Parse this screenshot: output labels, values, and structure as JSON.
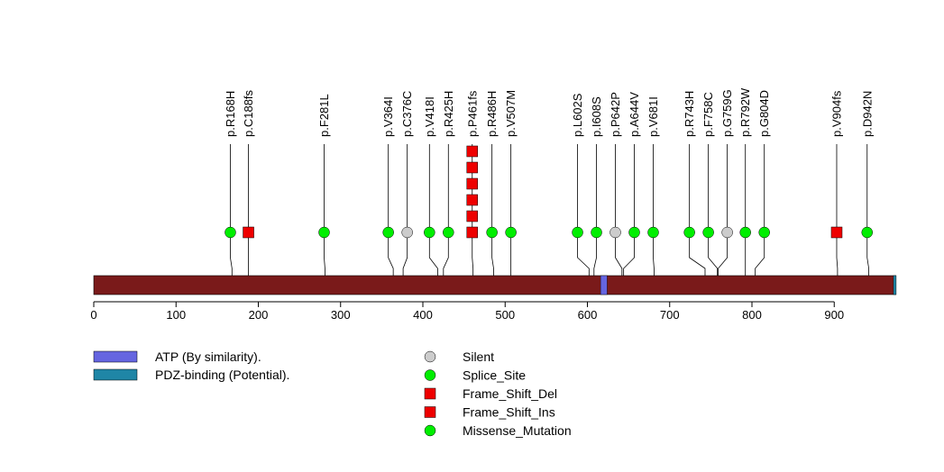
{
  "chart_data": {
    "type": "lollipop",
    "protein_length": 975,
    "xlim": [
      0,
      975
    ],
    "x_ticks": [
      0,
      100,
      200,
      300,
      400,
      500,
      600,
      700,
      800,
      900
    ],
    "domains": [
      {
        "name": "ATP (By similarity).",
        "start": 616,
        "end": 624,
        "color": "#6565e0"
      },
      {
        "name": "PDZ-binding (Potential).",
        "start": 972,
        "end": 975,
        "color": "#1f86a6"
      }
    ],
    "backbone_color": "#7a1a1a",
    "mutations": [
      {
        "label": "p.R168H",
        "position": 168,
        "type": "Missense_Mutation",
        "count": 1,
        "display_position": 166
      },
      {
        "label": "p.C188fs",
        "position": 188,
        "type": "Frame_Shift_Del",
        "count": 1,
        "display_position": 188
      },
      {
        "label": "p.F281L",
        "position": 281,
        "type": "Missense_Mutation",
        "count": 1,
        "display_position": 280
      },
      {
        "label": "p.V364I",
        "position": 364,
        "type": "Missense_Mutation",
        "count": 1,
        "display_position": 358
      },
      {
        "label": "p.C376C",
        "position": 376,
        "type": "Silent",
        "count": 1,
        "display_position": 381
      },
      {
        "label": "p.V418I",
        "position": 418,
        "type": "Missense_Mutation",
        "count": 1,
        "display_position": 408
      },
      {
        "label": "p.R425H",
        "position": 425,
        "type": "Missense_Mutation",
        "count": 1,
        "display_position": 431
      },
      {
        "label": "p.P461fs",
        "position": 461,
        "type": "Frame_Shift_Del",
        "count": 6,
        "display_position": 460
      },
      {
        "label": "p.R486H",
        "position": 486,
        "type": "Missense_Mutation",
        "count": 1,
        "display_position": 484
      },
      {
        "label": "p.V507M",
        "position": 507,
        "type": "Missense_Mutation",
        "count": 1,
        "display_position": 507
      },
      {
        "label": "p.L602S",
        "position": 602,
        "type": "Missense_Mutation",
        "count": 1,
        "display_position": 588
      },
      {
        "label": "p.I608S",
        "position": 608,
        "type": "Missense_Mutation",
        "count": 1,
        "display_position": 611
      },
      {
        "label": "p.P642P",
        "position": 642,
        "type": "Silent",
        "count": 1,
        "display_position": 634
      },
      {
        "label": "p.A644V",
        "position": 644,
        "type": "Missense_Mutation",
        "count": 1,
        "display_position": 657
      },
      {
        "label": "p.V681I",
        "position": 681,
        "type": "Missense_Mutation",
        "count": 1,
        "display_position": 680
      },
      {
        "label": "p.R743H",
        "position": 743,
        "type": "Missense_Mutation",
        "count": 1,
        "display_position": 724
      },
      {
        "label": "p.F758C",
        "position": 758,
        "type": "Missense_Mutation",
        "count": 1,
        "display_position": 747
      },
      {
        "label": "p.G759G",
        "position": 759,
        "type": "Silent",
        "count": 1,
        "display_position": 770
      },
      {
        "label": "p.R792W",
        "position": 792,
        "type": "Missense_Mutation",
        "count": 1,
        "display_position": 792
      },
      {
        "label": "p.G804D",
        "position": 804,
        "type": "Missense_Mutation",
        "count": 1,
        "display_position": 815
      },
      {
        "label": "p.V904fs",
        "position": 904,
        "type": "Frame_Shift_Del",
        "count": 1,
        "display_position": 903
      },
      {
        "label": "p.D942N",
        "position": 942,
        "type": "Missense_Mutation",
        "count": 1,
        "display_position": 940
      }
    ],
    "mutation_legend": [
      {
        "name": "Silent",
        "shape": "circle",
        "color": "#cccccc"
      },
      {
        "name": "Splice_Site",
        "shape": "circle",
        "color": "#00ee00"
      },
      {
        "name": "Frame_Shift_Del",
        "shape": "square",
        "color": "#ee0000"
      },
      {
        "name": "Frame_Shift_Ins",
        "shape": "square",
        "color": "#ee0000"
      },
      {
        "name": "Missense_Mutation",
        "shape": "circle",
        "color": "#00ee00"
      }
    ],
    "type_style": {
      "Silent": {
        "shape": "circle",
        "color": "#cccccc"
      },
      "Splice_Site": {
        "shape": "circle",
        "color": "#00ee00"
      },
      "Frame_Shift_Del": {
        "shape": "square",
        "color": "#ee0000"
      },
      "Frame_Shift_Ins": {
        "shape": "square",
        "color": "#ee0000"
      },
      "Missense_Mutation": {
        "shape": "circle",
        "color": "#00ee00"
      }
    }
  }
}
